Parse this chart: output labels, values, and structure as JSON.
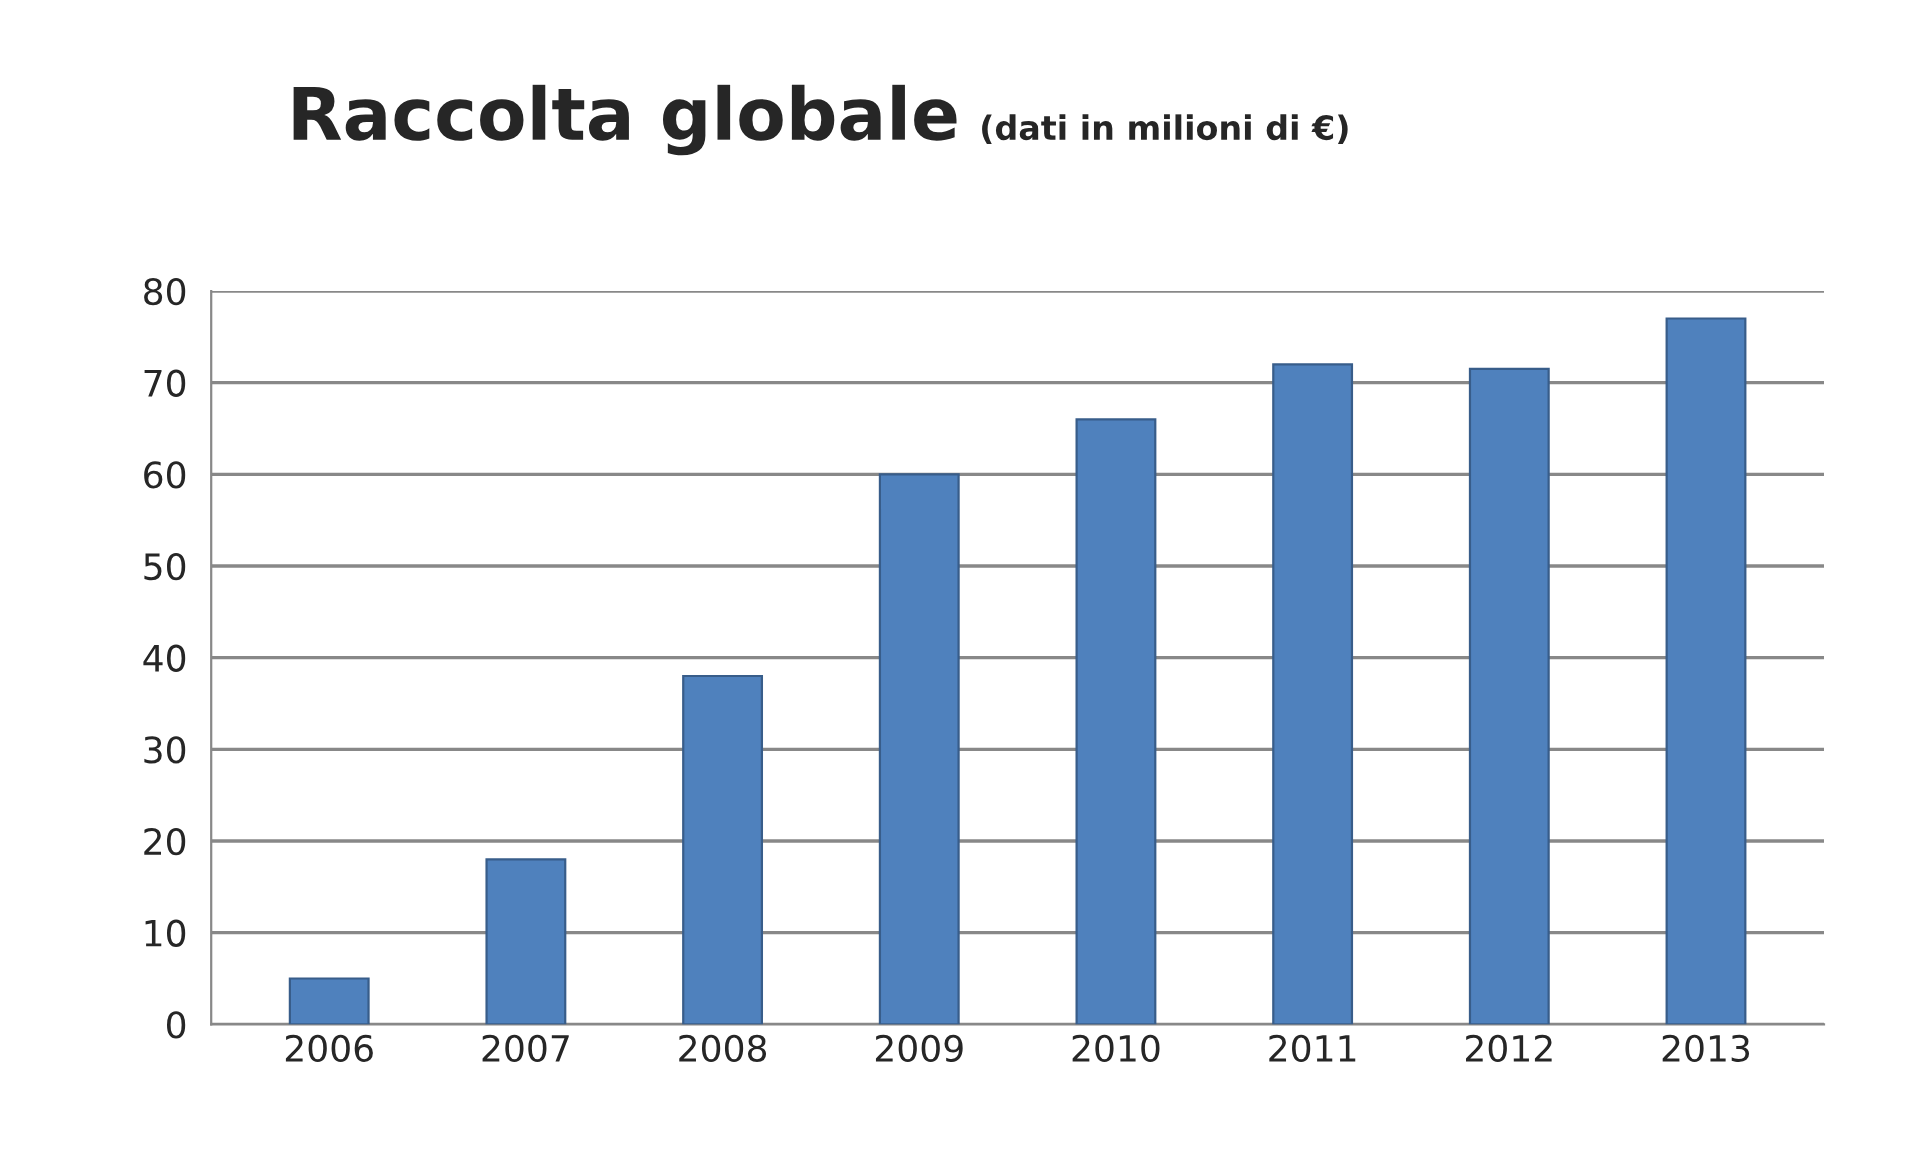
{
  "chart_data": {
    "type": "bar",
    "title": "Raccolta globale",
    "subtitle": "(dati in milioni di €)",
    "categories": [
      "2006",
      "2007",
      "2008",
      "2009",
      "2010",
      "2011",
      "2012",
      "2013"
    ],
    "values": [
      5,
      18,
      38,
      60,
      66,
      72,
      71.5,
      77
    ],
    "color": "#4f81bd",
    "ylim": [
      0,
      80
    ],
    "yticks": [
      0,
      10,
      20,
      30,
      40,
      50,
      60,
      70,
      80
    ],
    "grid": "y",
    "legend": false
  }
}
